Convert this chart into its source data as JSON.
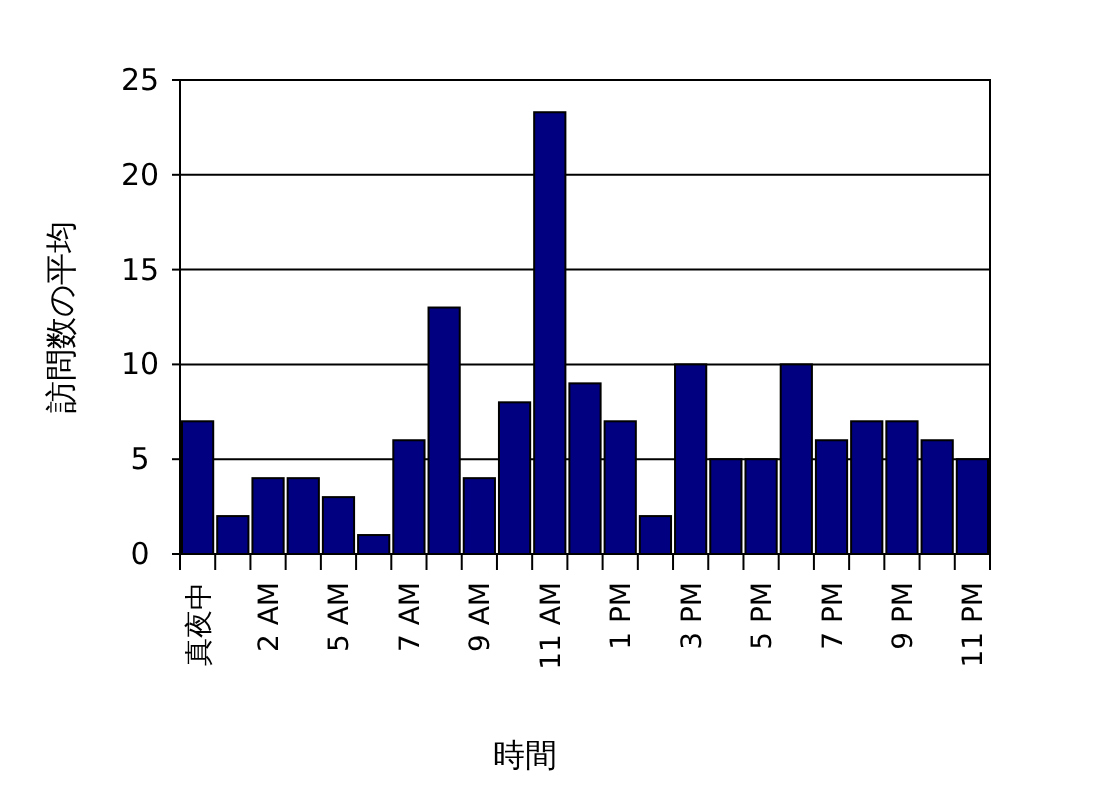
{
  "chart_data": {
    "type": "bar",
    "xlabel": "時間",
    "ylabel": "訪問数の平均",
    "categories": [
      "真夜中",
      null,
      "2 AM",
      null,
      "5 AM",
      null,
      "7 AM",
      null,
      "9 AM",
      null,
      "11 AM",
      null,
      "1 PM",
      null,
      "3 PM",
      null,
      "5 PM",
      null,
      "7 PM",
      null,
      "9 PM",
      null,
      "11 PM"
    ],
    "values": [
      7,
      2,
      4,
      4,
      3,
      1,
      6,
      13,
      4,
      8,
      23.3,
      9,
      7,
      2,
      10,
      5,
      5,
      10,
      6,
      7,
      7,
      6,
      5
    ],
    "color": "#000080",
    "ylim": [
      0,
      25
    ],
    "yticks": [
      0,
      5,
      10,
      15,
      20,
      25
    ],
    "grid": "y"
  }
}
